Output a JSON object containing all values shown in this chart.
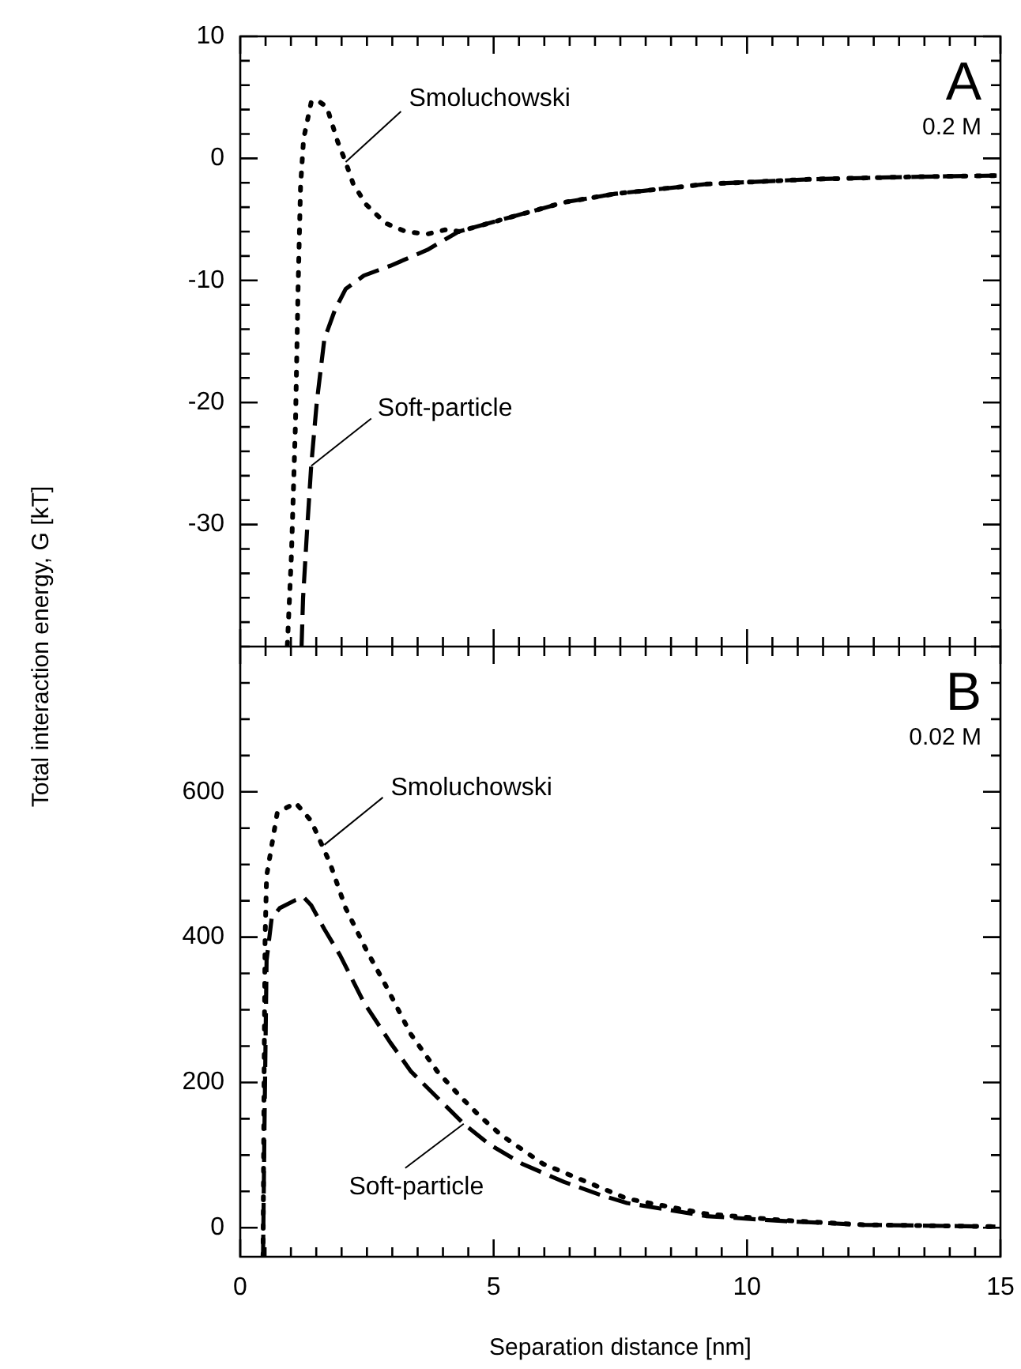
{
  "chart_data": [
    {
      "type": "line",
      "ylabel": "Total interaction energy, G [kT]",
      "annotations": [
        {
          "text": "Smoluchowski",
          "x": 2.08,
          "y": -0.3
        },
        {
          "text": "Soft-particle",
          "x": 1.4,
          "y": -25.2
        },
        "A",
        "0.2 M"
      ],
      "xlim": [
        0,
        15
      ],
      "xticks": [
        0,
        {
          "value": 0.5,
          "label": null
        },
        {
          "value": 1,
          "label": null
        },
        {
          "value": 1.5,
          "label": null
        },
        {
          "value": 2,
          "label": null
        },
        {
          "value": 2.5,
          "label": null
        },
        {
          "value": 3,
          "label": null
        },
        {
          "value": 3.5,
          "label": null
        },
        {
          "value": 4,
          "label": null
        },
        {
          "value": 4.5,
          "label": null
        },
        5,
        {
          "value": 5.5,
          "label": null
        },
        {
          "value": 6,
          "label": null
        },
        {
          "value": 6.5,
          "label": null
        },
        {
          "value": 7,
          "label": null
        },
        {
          "value": 7.5,
          "label": null
        },
        {
          "value": 8,
          "label": null
        },
        {
          "value": 8.5,
          "label": null
        },
        {
          "value": 9,
          "label": null
        },
        {
          "value": 9.5,
          "label": null
        },
        10,
        {
          "value": 10.5,
          "label": null
        },
        {
          "value": 11,
          "label": null
        },
        {
          "value": 11.5,
          "label": null
        },
        {
          "value": 12,
          "label": null
        },
        {
          "value": 12.5,
          "label": null
        },
        {
          "value": 13,
          "label": null
        },
        {
          "value": 13.5,
          "label": null
        },
        {
          "value": 14,
          "label": null
        },
        {
          "value": 14.5,
          "label": null
        },
        15
      ],
      "ylim": [
        -40,
        10
      ],
      "yticks": [
        {
          "value": -40,
          "label": null
        },
        {
          "value": -38,
          "label": null
        },
        {
          "value": -36,
          "label": null
        },
        {
          "value": -34,
          "label": null
        },
        {
          "value": -32,
          "label": null
        },
        -30,
        {
          "value": -28,
          "label": null
        },
        {
          "value": -26,
          "label": null
        },
        {
          "value": -24,
          "label": null
        },
        {
          "value": -22,
          "label": null
        },
        -20,
        {
          "value": -18,
          "label": null
        },
        {
          "value": -16,
          "label": null
        },
        {
          "value": -14,
          "label": null
        },
        {
          "value": -12,
          "label": null
        },
        -10,
        {
          "value": -8,
          "label": null
        },
        {
          "value": -6,
          "label": null
        },
        {
          "value": -4,
          "label": null
        },
        {
          "value": -2,
          "label": null
        },
        0,
        {
          "value": 2,
          "label": null
        },
        {
          "value": 4,
          "label": null
        },
        {
          "value": 6,
          "label": null
        },
        {
          "value": 8,
          "label": null
        },
        10
      ],
      "tick_labels": "y",
      "series": [
        {
          "color": "#000000",
          "line_style": "dotted",
          "x": [
            0.93,
            1.01,
            1.09,
            1.14,
            1.19,
            1.25,
            1.4,
            1.51,
            1.71,
            1.92,
            2.08,
            2.23,
            2.49,
            2.86,
            3.27,
            3.69,
            4.1,
            4.31,
            5.35,
            6.39,
            7.4,
            9.2,
            11.3,
            13.4,
            15
          ],
          "values": [
            -39.9,
            -32.5,
            -21.7,
            -10.9,
            -2.3,
            1.6,
            4.6,
            4.8,
            4.2,
            1.4,
            -0.3,
            -2.1,
            -3.8,
            -5.3,
            -6.0,
            -6.2,
            -5.8,
            -6.0,
            -4.8,
            -3.6,
            -2.9,
            -2.1,
            -1.7,
            -1.5,
            -1.4
          ]
        },
        {
          "color": "#000000",
          "line_style": "dashed",
          "x": [
            1.21,
            1.24,
            1.32,
            1.4,
            1.51,
            1.66,
            1.87,
            2.08,
            2.44,
            2.96,
            3.69,
            4.31,
            5.35,
            6.39,
            7.4,
            9.2,
            11.3,
            13.4,
            15
          ],
          "values": [
            -40,
            -36,
            -30.4,
            -25.2,
            -20,
            -14.8,
            -12.4,
            -10.7,
            -9.6,
            -8.8,
            -7.5,
            -6.0,
            -4.8,
            -3.6,
            -2.9,
            -2.1,
            -1.7,
            -1.5,
            -1.4
          ]
        }
      ]
    },
    {
      "type": "line",
      "xlabel": "Separation distance [nm]",
      "annotations": [
        {
          "text": "Smoluchowski",
          "x": 1.66,
          "y": 527
        },
        {
          "text": "Soft-particle",
          "x": 4.41,
          "y": 143
        },
        "B",
        "0.02 M"
      ],
      "xlim": [
        0,
        15
      ],
      "xticks": [
        0,
        {
          "value": 0.5,
          "label": null
        },
        {
          "value": 1,
          "label": null
        },
        {
          "value": 1.5,
          "label": null
        },
        {
          "value": 2,
          "label": null
        },
        {
          "value": 2.5,
          "label": null
        },
        {
          "value": 3,
          "label": null
        },
        {
          "value": 3.5,
          "label": null
        },
        {
          "value": 4,
          "label": null
        },
        {
          "value": 4.5,
          "label": null
        },
        5,
        {
          "value": 5.5,
          "label": null
        },
        {
          "value": 6,
          "label": null
        },
        {
          "value": 6.5,
          "label": null
        },
        {
          "value": 7,
          "label": null
        },
        {
          "value": 7.5,
          "label": null
        },
        {
          "value": 8,
          "label": null
        },
        {
          "value": 8.5,
          "label": null
        },
        {
          "value": 9,
          "label": null
        },
        {
          "value": 9.5,
          "label": null
        },
        10,
        {
          "value": 10.5,
          "label": null
        },
        {
          "value": 11,
          "label": null
        },
        {
          "value": 11.5,
          "label": null
        },
        {
          "value": 12,
          "label": null
        },
        {
          "value": 12.5,
          "label": null
        },
        {
          "value": 13,
          "label": null
        },
        {
          "value": 13.5,
          "label": null
        },
        {
          "value": 14,
          "label": null
        },
        {
          "value": 14.5,
          "label": null
        },
        15
      ],
      "ylim": [
        -40,
        800
      ],
      "yticks": [
        0,
        {
          "value": 50,
          "label": null
        },
        {
          "value": 100,
          "label": null
        },
        {
          "value": 150,
          "label": null
        },
        200,
        {
          "value": 250,
          "label": null
        },
        {
          "value": 300,
          "label": null
        },
        {
          "value": 350,
          "label": null
        },
        400,
        {
          "value": 450,
          "label": null
        },
        {
          "value": 500,
          "label": null
        },
        {
          "value": 550,
          "label": null
        },
        600,
        {
          "value": 650,
          "label": null
        },
        {
          "value": 700,
          "label": null
        },
        {
          "value": 750,
          "label": null
        },
        {
          "value": 800,
          "label": null
        }
      ],
      "series": [
        {
          "color": "#000000",
          "line_style": "dotted",
          "x": [
            0.45,
            0.47,
            0.49,
            0.52,
            0.73,
            1.09,
            1.4,
            1.77,
            2.08,
            2.49,
            2.86,
            3.37,
            3.89,
            4.31,
            4.72,
            5.14,
            5.97,
            7.22,
            7.63,
            9.19,
            10.75,
            12.3,
            14.9
          ],
          "values": [
            -40,
            200,
            397,
            484,
            571,
            585,
            560,
            502,
            440,
            382,
            335,
            266,
            215,
            183,
            154,
            128,
            88,
            52,
            40,
            19,
            10,
            4,
            1.5
          ]
        },
        {
          "color": "#000000",
          "line_style": "dashed",
          "x": [
            0.45,
            0.48,
            0.52,
            0.62,
            0.78,
            1.09,
            1.25,
            1.4,
            1.66,
            1.97,
            2.44,
            2.96,
            3.37,
            3.89,
            4.41,
            4.93,
            5.56,
            6.39,
            7.11,
            7.63,
            9.19,
            10.75,
            12.3,
            14.9
          ],
          "values": [
            -40,
            150,
            368,
            426,
            440,
            451,
            455,
            444,
            411,
            375,
            310,
            255,
            215,
            179,
            143,
            114,
            88,
            63,
            45,
            34,
            16,
            9,
            4,
            1.5
          ]
        }
      ]
    }
  ]
}
